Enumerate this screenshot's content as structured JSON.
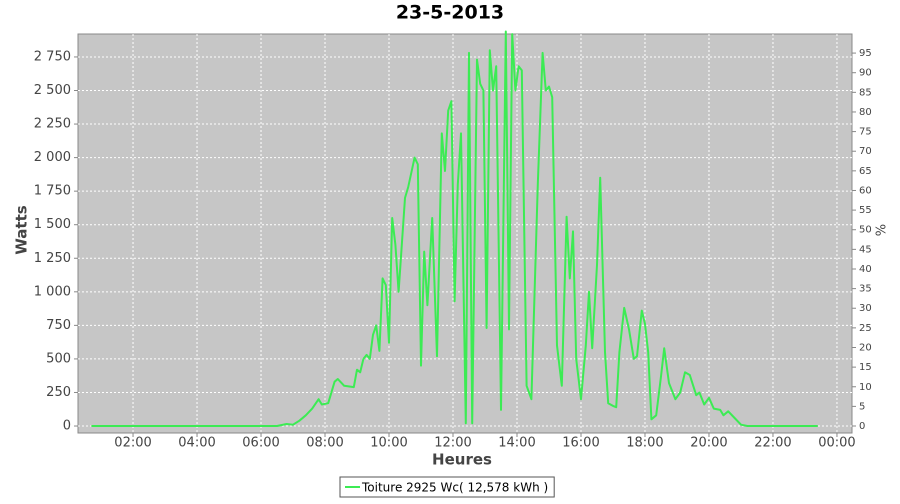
{
  "chart_data": {
    "type": "line",
    "title": "23-5-2013",
    "x_label": "Heures",
    "y_label": "Watts",
    "y2_label": "%",
    "x": [
      0.7,
      6.5,
      6.8,
      7.0,
      7.2,
      7.4,
      7.6,
      7.8,
      7.9,
      8.1,
      8.3,
      8.4,
      8.6,
      8.9,
      9.0,
      9.1,
      9.2,
      9.3,
      9.4,
      9.5,
      9.6,
      9.7,
      9.8,
      9.9,
      10.0,
      10.1,
      10.2,
      10.3,
      10.4,
      10.5,
      10.6,
      10.8,
      10.9,
      11.0,
      11.1,
      11.2,
      11.35,
      11.5,
      11.65,
      11.75,
      11.85,
      11.95,
      12.05,
      12.15,
      12.25,
      12.4,
      12.5,
      12.6,
      12.75,
      12.85,
      12.95,
      13.05,
      13.15,
      13.25,
      13.35,
      13.5,
      13.65,
      13.75,
      13.85,
      13.95,
      14.05,
      14.15,
      14.3,
      14.45,
      14.55,
      14.65,
      14.8,
      14.9,
      15.0,
      15.1,
      15.25,
      15.4,
      15.55,
      15.65,
      15.75,
      15.85,
      16.0,
      16.15,
      16.25,
      16.35,
      16.5,
      16.6,
      16.75,
      16.85,
      17.0,
      17.1,
      17.2,
      17.35,
      17.5,
      17.65,
      17.75,
      17.9,
      18.0,
      18.1,
      18.2,
      18.35,
      18.5,
      18.6,
      18.75,
      18.95,
      19.1,
      19.25,
      19.4,
      19.6,
      19.7,
      19.85,
      20.0,
      20.15,
      20.35,
      20.45,
      20.6,
      20.8,
      21.0,
      21.2,
      22.0,
      23.4
    ],
    "series": [
      {
        "name": "Toiture 2925 Wc( 12,578 kWh )",
        "color": "#3ceb54",
        "values": [
          0,
          0,
          15,
          10,
          40,
          80,
          130,
          200,
          160,
          170,
          330,
          350,
          300,
          290,
          420,
          400,
          500,
          530,
          500,
          680,
          750,
          560,
          1100,
          1050,
          620,
          1550,
          1350,
          1000,
          1350,
          1700,
          1780,
          2000,
          1950,
          450,
          1300,
          900,
          1550,
          520,
          2180,
          1900,
          2350,
          2420,
          930,
          1800,
          2180,
          20,
          2780,
          20,
          2730,
          2550,
          2500,
          730,
          2800,
          2500,
          2680,
          120,
          2940,
          720,
          2920,
          2500,
          2680,
          2650,
          300,
          200,
          1000,
          1800,
          2780,
          2500,
          2530,
          2450,
          600,
          300,
          1560,
          1100,
          1450,
          500,
          200,
          600,
          1000,
          580,
          1200,
          1850,
          550,
          170,
          150,
          140,
          550,
          880,
          720,
          500,
          520,
          860,
          760,
          550,
          50,
          80,
          370,
          580,
          320,
          200,
          250,
          400,
          380,
          230,
          250,
          160,
          210,
          130,
          120,
          80,
          110,
          60,
          10,
          0,
          0,
          0
        ]
      }
    ],
    "xlim": [
      0.28,
      24.47
    ],
    "xticks": [
      {
        "value": 2,
        "label": "02:00"
      },
      {
        "value": 4,
        "label": "04:00"
      },
      {
        "value": 6,
        "label": "06:00"
      },
      {
        "value": 8,
        "label": "08:00"
      },
      {
        "value": 10,
        "label": "10:00"
      },
      {
        "value": 12,
        "label": "12:00"
      },
      {
        "value": 14,
        "label": "14:00"
      },
      {
        "value": 16,
        "label": "16:00"
      },
      {
        "value": 18,
        "label": "18:00"
      },
      {
        "value": 20,
        "label": "20:00"
      },
      {
        "value": 22,
        "label": "22:00"
      },
      {
        "value": 24,
        "label": "00:00"
      }
    ],
    "ylim": [
      -52,
      2921
    ],
    "yticks": [
      0,
      250,
      500,
      750,
      {
        "value": 1000,
        "label": "1 000"
      },
      {
        "value": 1250,
        "label": "1 250"
      },
      {
        "value": 1500,
        "label": "1 500"
      },
      {
        "value": 1750,
        "label": "1 750"
      },
      {
        "value": 2000,
        "label": "2 000"
      },
      {
        "value": 2250,
        "label": "2 250"
      },
      {
        "value": 2500,
        "label": "2 500"
      },
      {
        "value": 2750,
        "label": "2 750"
      }
    ],
    "y2lim": [
      -1.78,
      99.86
    ],
    "y2ticks": [
      0,
      5,
      10,
      15,
      20,
      25,
      30,
      35,
      40,
      45,
      50,
      55,
      60,
      65,
      70,
      75,
      80,
      85,
      90,
      95
    ],
    "grid": true,
    "legend": "bottom",
    "background": "#c6c6c6"
  }
}
